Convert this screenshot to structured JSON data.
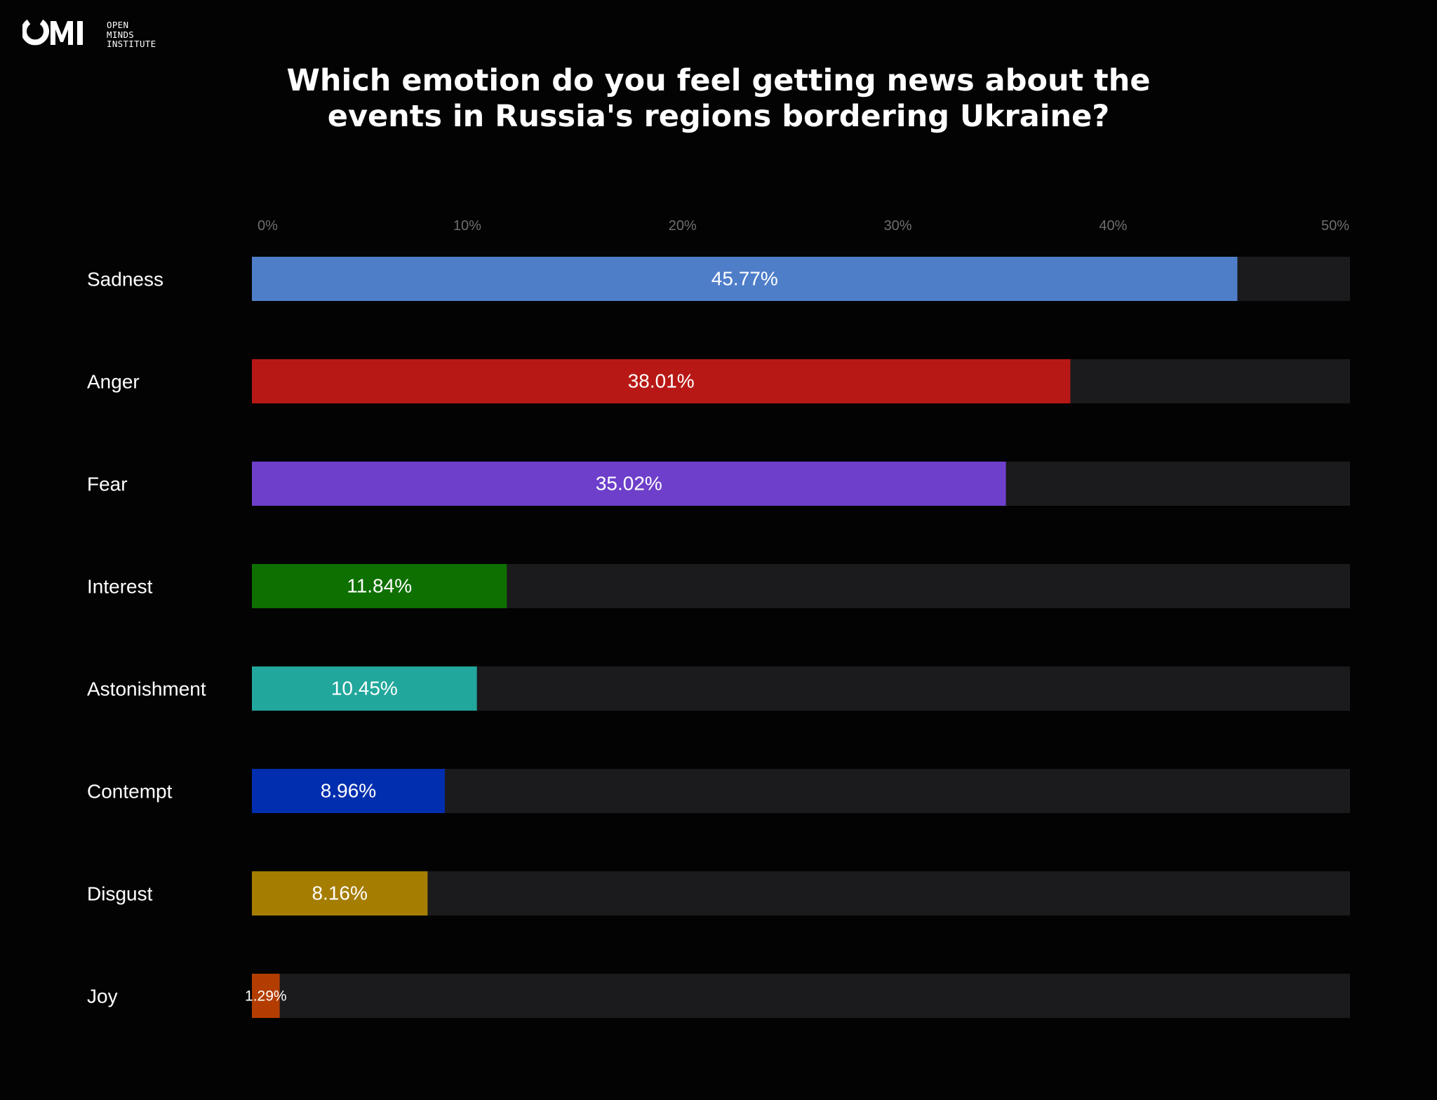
{
  "brand": {
    "logo_mark": "OMI",
    "logo_lines": [
      "OPEN",
      "MINDS",
      "INSTITUTE"
    ]
  },
  "chart_data": {
    "type": "bar",
    "orientation": "horizontal",
    "title_lines": [
      "Which emotion do you feel getting news about the",
      "events in Russia's regions bordering Ukraine?"
    ],
    "categories": [
      "Sadness",
      "Anger",
      "Fear",
      "Interest",
      "Astonishment",
      "Contempt",
      "Disgust",
      "Joy"
    ],
    "values": [
      45.77,
      38.01,
      35.02,
      11.84,
      10.45,
      8.96,
      8.16,
      1.29
    ],
    "value_labels": [
      "45.77%",
      "38.01%",
      "35.02%",
      "11.84%",
      "10.45%",
      "8.96%",
      "8.16%",
      "1.29%"
    ],
    "colors": [
      "#4f7ec9",
      "#b81815",
      "#6e3fcb",
      "#0e7000",
      "#22a79c",
      "#002eaf",
      "#a57d00",
      "#b33d00"
    ],
    "track_color": "#1b1a1d",
    "xlim": [
      0,
      51
    ],
    "xticks": [
      0,
      10,
      20,
      30,
      40,
      50
    ],
    "xtick_labels": [
      "0%",
      "10%",
      "20%",
      "30%",
      "40%",
      "50%"
    ],
    "grid": false,
    "legend": "none"
  }
}
